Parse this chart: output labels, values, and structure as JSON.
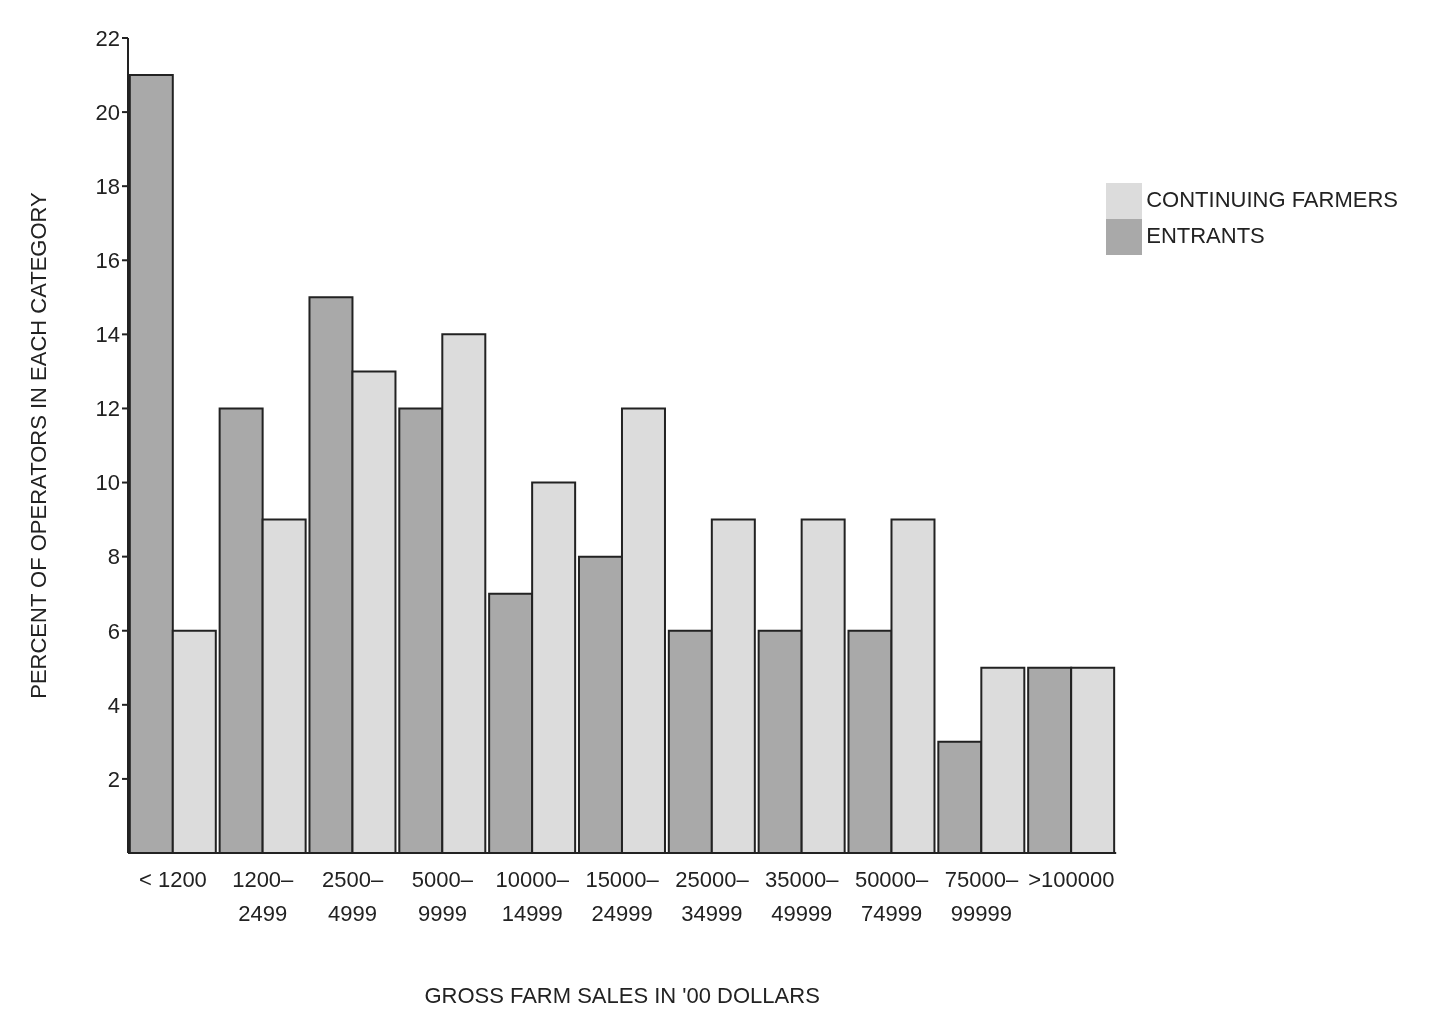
{
  "chart_data": {
    "type": "bar",
    "xlabel": "GROSS FARM SALES IN  '00  DOLLARS",
    "ylabel": "PERCENT OF OPERATORS IN EACH CATEGORY",
    "categories": [
      "< 1200",
      "1200–2499",
      "2500–4999",
      "5000–9999",
      "10000–14999",
      "15000–24999",
      "25000–34999",
      "35000–49999",
      "50000–74999",
      "75000–99999",
      ">100000"
    ],
    "series": [
      {
        "name": "ENTRANTS",
        "color": "#a9a9a9",
        "values": [
          21,
          12,
          15,
          12,
          7,
          8,
          6,
          6,
          6,
          3,
          5
        ]
      },
      {
        "name": "CONTINUING FARMERS",
        "color": "#dcdcdc",
        "values": [
          6,
          9,
          13,
          14,
          10,
          12,
          9,
          9,
          9,
          5,
          5
        ]
      }
    ],
    "ylim": [
      0,
      22
    ],
    "yticks": [
      2,
      4,
      6,
      8,
      10,
      12,
      14,
      16,
      18,
      20,
      22
    ],
    "grid": false,
    "legend": "top right"
  }
}
